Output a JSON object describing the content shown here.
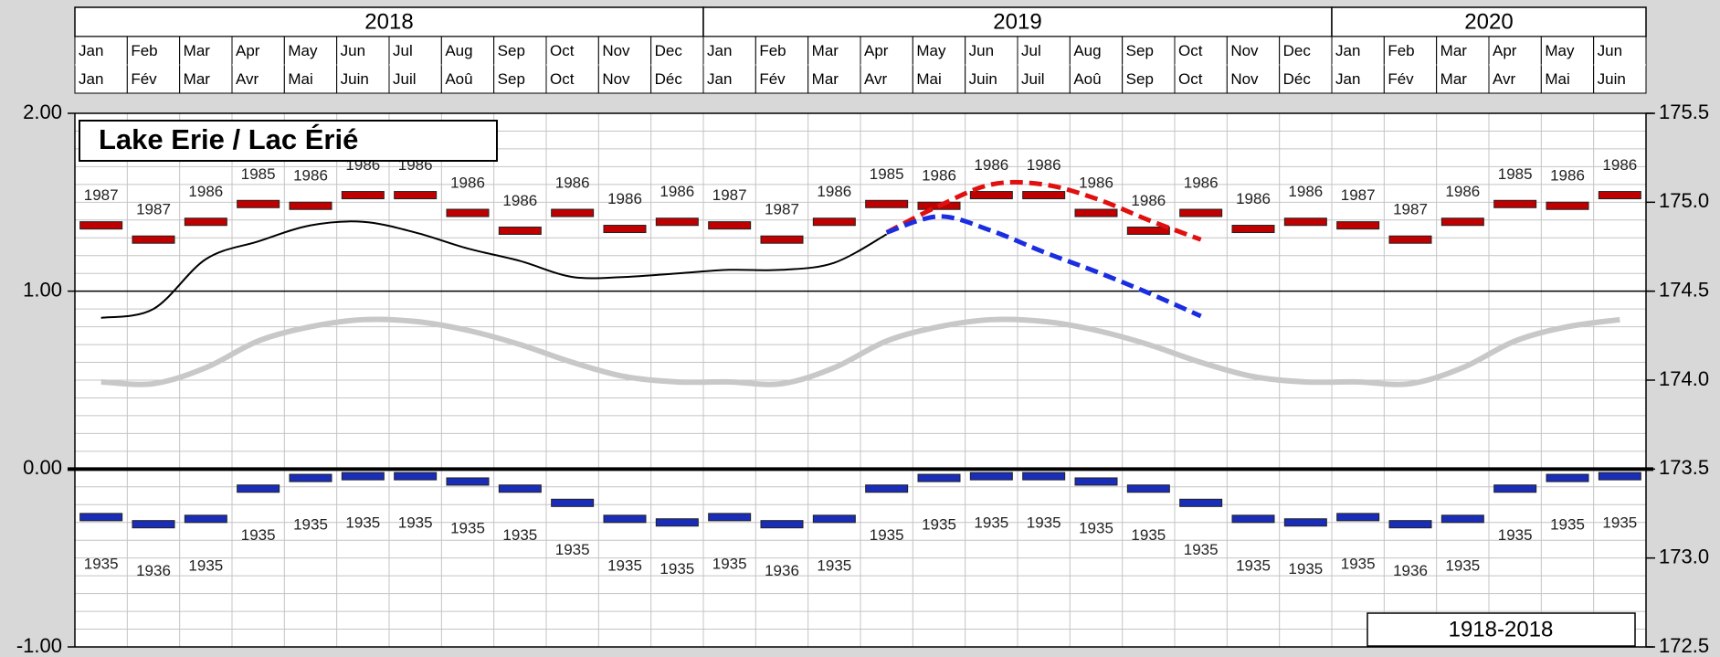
{
  "chart_data": {
    "type": "line",
    "title": "Lake Erie / Lac Érié",
    "period": "1918-2018",
    "years": [
      "2018",
      "2019",
      "2020"
    ],
    "categories": [
      "Jan",
      "Feb",
      "Mar",
      "Apr",
      "May",
      "Jun",
      "Jul",
      "Aug",
      "Sep",
      "Oct",
      "Nov",
      "Dec",
      "Jan",
      "Feb",
      "Mar",
      "Apr",
      "May",
      "Jun",
      "Jul",
      "Aug",
      "Sep",
      "Oct",
      "Nov",
      "Dec",
      "Jan",
      "Feb",
      "Mar",
      "Apr",
      "May",
      "Jun"
    ],
    "categories_fr": [
      "Jan",
      "Fév",
      "Mar",
      "Avr",
      "Mai",
      "Juin",
      "Juil",
      "Aoû",
      "Sep",
      "Oct",
      "Nov",
      "Déc",
      "Jan",
      "Fév",
      "Mar",
      "Avr",
      "Mai",
      "Juin",
      "Juil",
      "Aoû",
      "Sep",
      "Oct",
      "Nov",
      "Déc",
      "Jan",
      "Fév",
      "Mar",
      "Avr",
      "Mai",
      "Juin"
    ],
    "ylim": [
      -1,
      2
    ],
    "yticks": [
      {
        "value": -1,
        "label": "-1.00"
      },
      {
        "value": 0,
        "label": "0.00"
      },
      {
        "value": 1,
        "label": "1.00"
      },
      {
        "value": 2,
        "label": "2.00"
      }
    ],
    "y2lim": [
      172.5,
      175.5
    ],
    "y2ticks": [
      172.5,
      {
        "value": 173,
        "label": "173.0"
      },
      173.5,
      {
        "value": 174,
        "label": "174.0"
      },
      174.5,
      {
        "value": 175,
        "label": "175.0"
      },
      175.5
    ],
    "grid": true,
    "series": [
      {
        "mark": "dash",
        "color": "#c00000",
        "values": [
          1.37,
          1.29,
          1.39,
          1.49,
          1.48,
          1.54,
          1.54,
          1.44,
          1.34,
          1.44,
          1.35,
          1.39,
          1.37,
          1.29,
          1.39,
          1.49,
          1.48,
          1.54,
          1.54,
          1.44,
          1.34,
          1.44,
          1.35,
          1.39,
          1.37,
          1.29,
          1.39,
          1.49,
          1.48,
          1.54
        ],
        "year_labels": [
          "1987",
          "1987",
          "1986",
          "1985",
          "1986",
          "1986",
          "1986",
          "1986",
          "1986",
          "1986",
          "1986",
          "1986",
          "1987",
          "1987",
          "1986",
          "1985",
          "1986",
          "1986",
          "1986",
          "1986",
          "1986",
          "1986",
          "1986",
          "1986",
          "1987",
          "1987",
          "1986",
          "1985",
          "1986",
          "1986"
        ]
      },
      {
        "mark": "dash",
        "color": "#1a2db8",
        "values": [
          -0.27,
          -0.31,
          -0.28,
          -0.11,
          -0.05,
          -0.04,
          -0.04,
          -0.07,
          -0.11,
          -0.19,
          -0.28,
          -0.3,
          -0.27,
          -0.31,
          -0.28,
          -0.11,
          -0.05,
          -0.04,
          -0.04,
          -0.07,
          -0.11,
          -0.19,
          -0.28,
          -0.3,
          -0.27,
          -0.31,
          -0.28,
          -0.11,
          -0.05,
          -0.04
        ],
        "year_labels": [
          "1935",
          "1936",
          "1935",
          "1935",
          "1935",
          "1935",
          "1935",
          "1935",
          "1935",
          "1935",
          "1935",
          "1935",
          "1935",
          "1936",
          "1935",
          "1935",
          "1935",
          "1935",
          "1935",
          "1935",
          "1935",
          "1935",
          "1935",
          "1935",
          "1935",
          "1936",
          "1935",
          "1935",
          "1935",
          "1935"
        ]
      },
      {
        "mark": "line",
        "color": "#c8c8c8",
        "style": "solid",
        "width": 6,
        "values": [
          0.49,
          0.48,
          0.57,
          0.72,
          0.8,
          0.84,
          0.83,
          0.78,
          0.7,
          0.6,
          0.52,
          0.49,
          0.49,
          0.48,
          0.57,
          0.72,
          0.8,
          0.84,
          0.83,
          0.78,
          0.7,
          0.6,
          0.52,
          0.49,
          0.49,
          0.48,
          0.57,
          0.72,
          0.8,
          0.84
        ]
      },
      {
        "mark": "line",
        "color": "#000000",
        "style": "solid",
        "width": 2,
        "values": [
          0.85,
          0.9,
          1.18,
          1.28,
          1.37,
          1.39,
          1.33,
          1.24,
          1.17,
          1.08,
          1.08,
          1.1,
          1.12,
          1.12,
          1.16,
          1.32,
          null,
          null,
          null,
          null,
          null,
          null,
          null,
          null,
          null,
          null,
          null,
          null,
          null,
          null
        ]
      },
      {
        "mark": "line",
        "color": "#e01010",
        "style": "dashed",
        "width": 5,
        "values": [
          null,
          null,
          null,
          null,
          null,
          null,
          null,
          null,
          null,
          null,
          null,
          null,
          null,
          null,
          null,
          1.33,
          1.48,
          1.6,
          1.6,
          1.52,
          1.4,
          1.29,
          null,
          null,
          null,
          null,
          null,
          null,
          null,
          null
        ]
      },
      {
        "mark": "line",
        "color": "#1a2de0",
        "style": "dashed",
        "width": 5,
        "values": [
          null,
          null,
          null,
          null,
          null,
          null,
          null,
          null,
          null,
          null,
          null,
          null,
          null,
          null,
          null,
          1.33,
          1.42,
          1.34,
          1.22,
          1.11,
          0.99,
          0.86,
          null,
          null,
          null,
          null,
          null,
          null,
          null,
          null
        ]
      }
    ]
  }
}
